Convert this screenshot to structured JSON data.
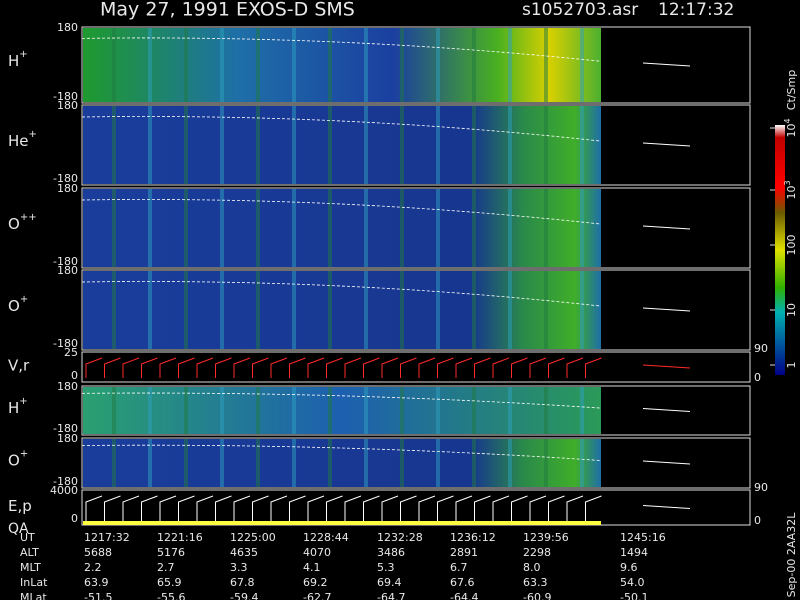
{
  "header": {
    "title": "May 27, 1991   EXOS-D SMS",
    "file": "s1052703.asr",
    "time": "12:17:32"
  },
  "panels": [
    {
      "label": "H",
      "sup": "+",
      "yticks": [
        "180",
        "-180"
      ]
    },
    {
      "label": "He",
      "sup": "+",
      "yticks": [
        "180",
        "-180"
      ]
    },
    {
      "label": "O",
      "sup": "++",
      "yticks": [
        "180",
        "-180"
      ]
    },
    {
      "label": "O",
      "sup": "+",
      "yticks": [
        "180",
        "-180"
      ]
    },
    {
      "label": "V,r",
      "yticks": [
        "25",
        "0"
      ],
      "y2ticks": [
        "90",
        "0"
      ]
    },
    {
      "label": "H",
      "sup": "+",
      "yticks": [
        "180",
        "-180"
      ]
    },
    {
      "label": "O",
      "sup": "+",
      "yticks": [
        "180",
        "-180"
      ]
    },
    {
      "label": "E,p",
      "label2": "QA",
      "yticks": [
        "4000",
        "0"
      ],
      "y2ticks": [
        "90",
        "0"
      ]
    }
  ],
  "colorbar": {
    "unit": "Ct/Smp",
    "ticks": [
      {
        "base": "10",
        "exp": "4"
      },
      {
        "base": "10",
        "exp": "3"
      },
      {
        "base": "100"
      },
      {
        "base": "10"
      },
      {
        "base": "1"
      }
    ]
  },
  "footer_id": "Sep-00 2AA32L",
  "table": {
    "rows": [
      [
        "UT",
        "1217:32",
        "1221:16",
        "1225:00",
        "1228:44",
        "1232:28",
        "1236:12",
        "1239:56",
        "1245:16"
      ],
      [
        "ALT",
        "5688",
        "5176",
        "4635",
        "4070",
        "3486",
        "2891",
        "2298",
        "1494"
      ],
      [
        "MLT",
        "2.2",
        "2.7",
        "3.3",
        "4.1",
        "5.3",
        "6.7",
        "8.0",
        "9.6"
      ],
      [
        "InLat",
        "63.9",
        "65.9",
        "67.8",
        "69.2",
        "69.4",
        "67.6",
        "63.3",
        "54.0"
      ],
      [
        "MLat",
        "-51.5",
        "-55.6",
        "-59.4",
        "-62.7",
        "-64.7",
        "-64.4",
        "-60.9",
        "-50.1"
      ]
    ]
  }
}
